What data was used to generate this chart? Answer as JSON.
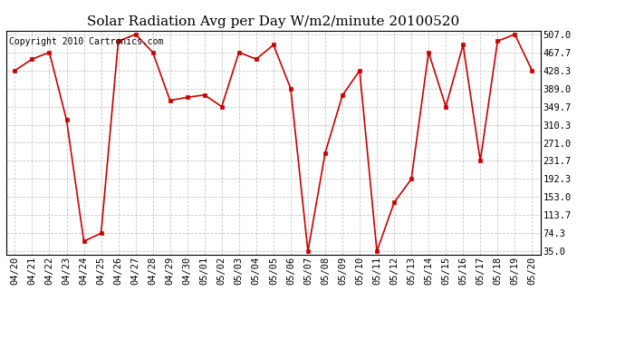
{
  "title": "Solar Radiation Avg per Day W/m2/minute 20100520",
  "copyright": "Copyright 2010 Cartronics.com",
  "dates": [
    "04/20",
    "04/21",
    "04/22",
    "04/23",
    "04/24",
    "04/25",
    "04/26",
    "04/27",
    "04/28",
    "04/29",
    "04/30",
    "05/01",
    "05/02",
    "05/03",
    "05/04",
    "05/05",
    "05/06",
    "05/07",
    "05/08",
    "05/09",
    "05/10",
    "05/11",
    "05/12",
    "05/13",
    "05/14",
    "05/15",
    "05/16",
    "05/17",
    "05/18",
    "05/19",
    "05/20"
  ],
  "values": [
    428.3,
    453.0,
    467.7,
    320.3,
    57.0,
    74.3,
    492.0,
    507.0,
    467.7,
    363.0,
    370.0,
    375.0,
    349.7,
    467.7,
    453.0,
    484.0,
    389.0,
    35.0,
    249.0,
    374.0,
    428.3,
    35.0,
    141.0,
    192.3,
    467.7,
    349.7,
    484.0,
    231.7,
    492.0,
    507.0,
    428.3
  ],
  "yticks": [
    35.0,
    74.3,
    113.7,
    153.0,
    192.3,
    231.7,
    271.0,
    310.3,
    349.7,
    389.0,
    428.3,
    467.7,
    507.0
  ],
  "line_color": "#cc0000",
  "marker_color": "#cc0000",
  "bg_color": "#ffffff",
  "grid_color": "#bbbbbb",
  "title_fontsize": 11,
  "copyright_fontsize": 7,
  "tick_fontsize": 7.5
}
